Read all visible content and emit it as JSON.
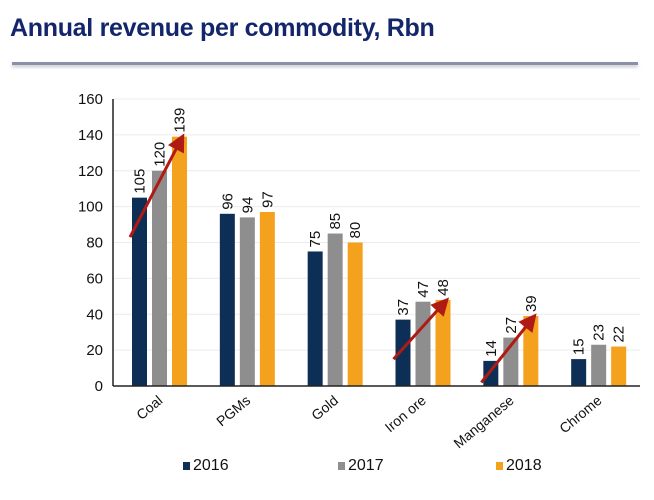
{
  "chart_data": {
    "type": "bar",
    "title": "Annual revenue per commodity, Rbn",
    "xlabel": "",
    "ylabel": "",
    "ylim": [
      0,
      160
    ],
    "yticks": [
      0,
      20,
      40,
      60,
      80,
      100,
      120,
      140,
      160
    ],
    "grid": true,
    "legend_position": "bottom",
    "categories": [
      "Coal",
      "PGMs",
      "Gold",
      "Iron ore",
      "Manganese",
      "Chrome"
    ],
    "series": [
      {
        "name": "2016",
        "color": "#0e2f55",
        "values": [
          105,
          96,
          75,
          37,
          14,
          15
        ]
      },
      {
        "name": "2017",
        "color": "#8e8e8e",
        "values": [
          120,
          94,
          85,
          47,
          27,
          23
        ]
      },
      {
        "name": "2018",
        "color": "#f4a21d",
        "values": [
          139,
          97,
          80,
          48,
          39,
          22
        ]
      }
    ],
    "annotations": [
      {
        "type": "trend-arrow",
        "category": "Coal",
        "color": "#b01a14"
      },
      {
        "type": "trend-arrow",
        "category": "Iron ore",
        "color": "#b01a14"
      },
      {
        "type": "trend-arrow",
        "category": "Manganese",
        "color": "#b01a14"
      }
    ]
  }
}
